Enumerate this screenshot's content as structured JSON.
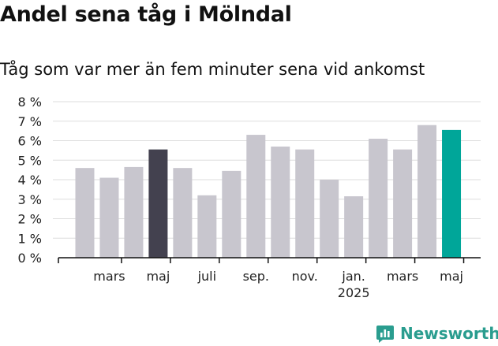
{
  "header": {
    "title": "Andel sena tåg i Mölndal",
    "subtitle": "Tåg som var mer än fem minuter sena vid ankomst"
  },
  "brand": {
    "name": "Newsworthy"
  },
  "colors": {
    "bar_default": "#c8c6ce",
    "bar_highlight_dark": "#43414f",
    "bar_highlight_accent": "#00a699",
    "brand": "#2a9d8f",
    "grid": "#dddddd"
  },
  "chart_data": {
    "type": "bar",
    "ylim": [
      0,
      8
    ],
    "yticks": [
      "0 %",
      "1 %",
      "2 %",
      "3 %",
      "4 %",
      "5 %",
      "6 %",
      "7 %",
      "8 %"
    ],
    "grid": true,
    "xtick_labels": [
      {
        "index": 1,
        "label": "mars"
      },
      {
        "index": 3,
        "label": "maj"
      },
      {
        "index": 5,
        "label": "juli"
      },
      {
        "index": 7,
        "label": "sep."
      },
      {
        "index": 9,
        "label": "nov."
      },
      {
        "index": 11,
        "label": "jan.",
        "sublabel": "2025"
      },
      {
        "index": 13,
        "label": "mars"
      },
      {
        "index": 15,
        "label": "maj"
      }
    ],
    "values": [
      4.6,
      4.1,
      4.65,
      5.55,
      4.6,
      3.2,
      4.45,
      6.3,
      5.7,
      5.55,
      4.0,
      3.15,
      6.1,
      5.55,
      6.8,
      6.55
    ],
    "highlight": {
      "3": "dark",
      "15": "accent"
    }
  }
}
